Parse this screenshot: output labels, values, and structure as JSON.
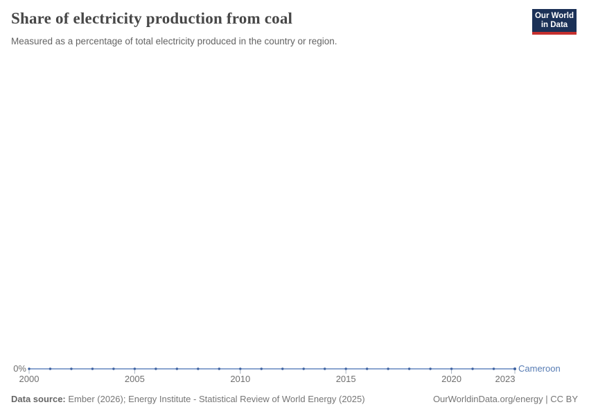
{
  "header": {
    "title": "Share of electricity production from coal",
    "subtitle": "Measured as a percentage of total electricity produced in the country or region.",
    "logo": {
      "line1": "Our World",
      "line2": "in Data",
      "bg_color": "#1B3157",
      "stripe_color": "#C5302E"
    }
  },
  "chart_data": {
    "type": "line",
    "title": "Share of electricity production from coal",
    "subtitle": "Measured as a percentage of total electricity produced in the country or region.",
    "x": [
      2000,
      2001,
      2002,
      2003,
      2004,
      2005,
      2006,
      2007,
      2008,
      2009,
      2010,
      2011,
      2012,
      2013,
      2014,
      2015,
      2016,
      2017,
      2018,
      2019,
      2020,
      2021,
      2022,
      2023
    ],
    "series": [
      {
        "name": "Cameroon",
        "values": [
          0,
          0,
          0,
          0,
          0,
          0,
          0,
          0,
          0,
          0,
          0,
          0,
          0,
          0,
          0,
          0,
          0,
          0,
          0,
          0,
          0,
          0,
          0,
          0
        ]
      }
    ],
    "x_ticks": [
      2000,
      2005,
      2010,
      2015,
      2020,
      2023
    ],
    "y_axis": {
      "tick_label": "0%",
      "unit": "%"
    },
    "grid": false,
    "legend_position": "end-of-line",
    "colors": {
      "line": "#8AA4CF",
      "dot": "#3E62A1",
      "entity_label": "#577CB4",
      "axis_text": "#6e6e6e",
      "tick": "#A9B3BF"
    }
  },
  "footer": {
    "datasource_label": "Data source:",
    "datasource_text": " Ember (2026); Energy Institute - Statistical Review of World Energy (2025)",
    "credit": "OurWorldinData.org/energy | CC BY"
  }
}
